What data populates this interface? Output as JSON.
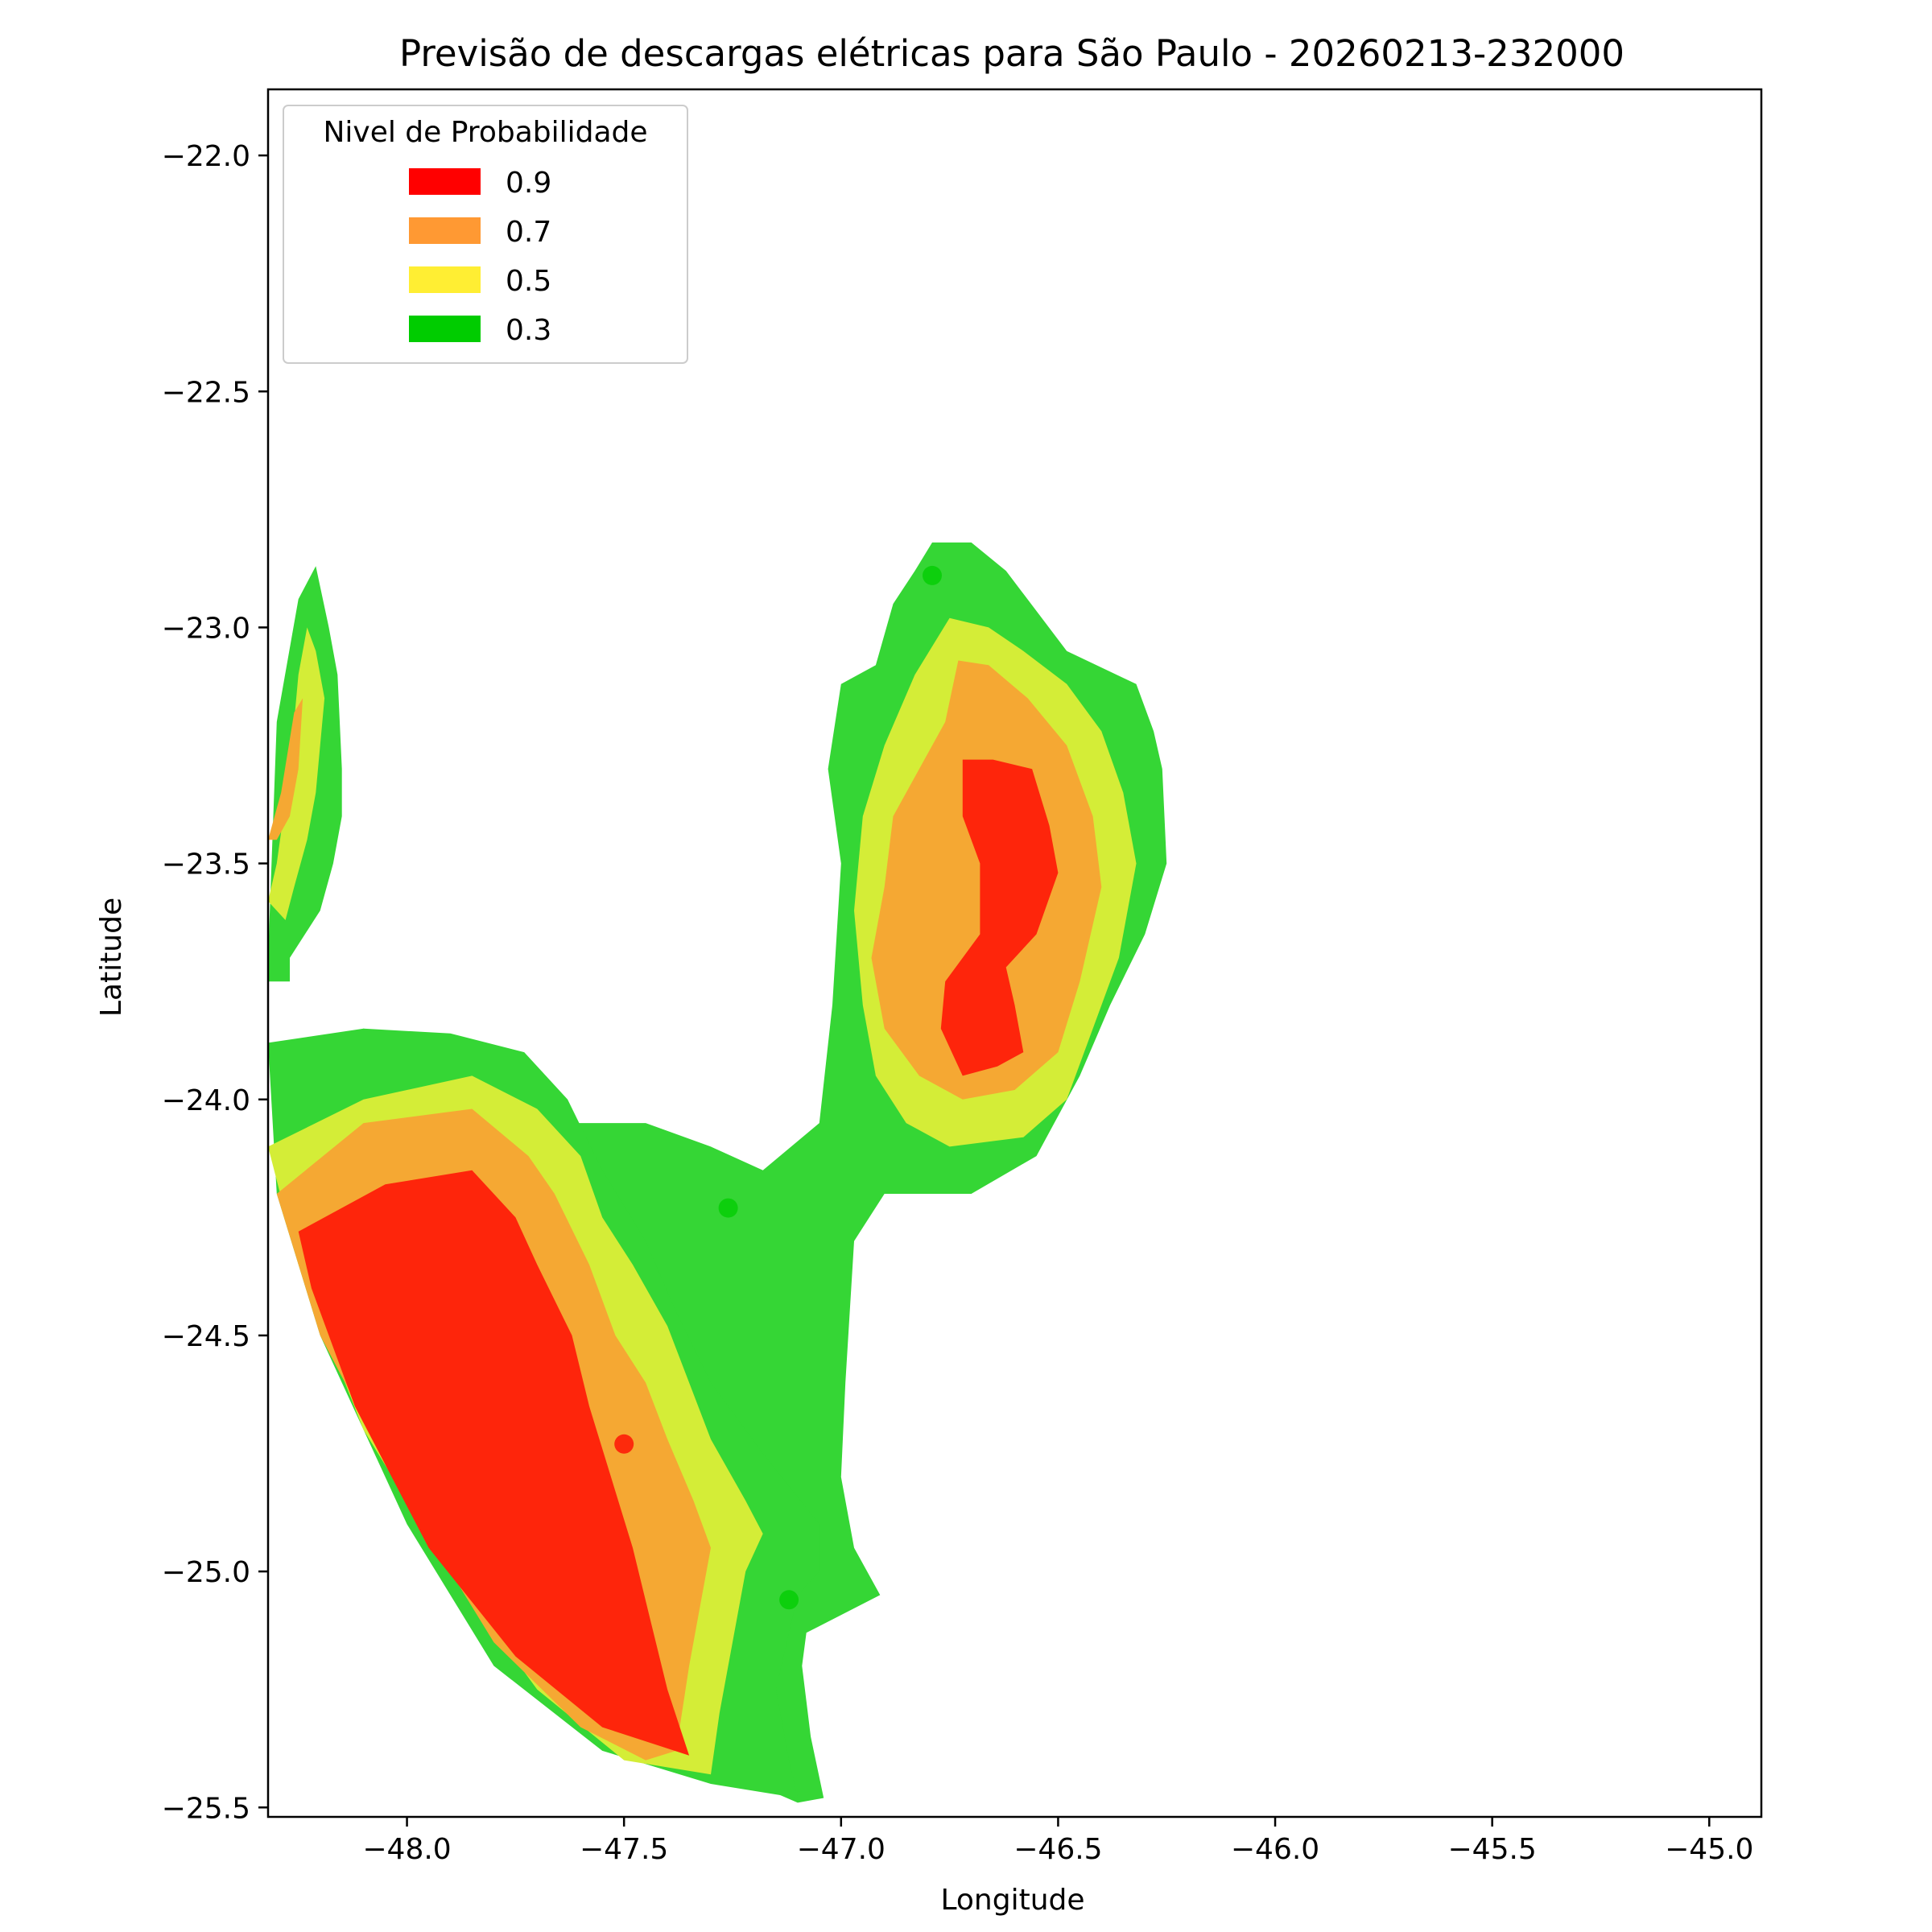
{
  "chart_data": {
    "type": "contour",
    "title": "Previsão de descargas elétricas para São Paulo - 20260213-232000",
    "xlabel": "Longitude",
    "ylabel": "Latitude",
    "xlim": [
      -48.32,
      -44.88
    ],
    "ylim": [
      -25.52,
      -21.86
    ],
    "xticks": [
      -48.0,
      -47.5,
      -47.0,
      -46.5,
      -46.0,
      -45.5,
      -45.0
    ],
    "xtick_labels": [
      "−48.0",
      "−47.5",
      "−47.0",
      "−46.5",
      "−46.0",
      "−45.5",
      "−45.0"
    ],
    "yticks": [
      -22.0,
      -22.5,
      -23.0,
      -23.5,
      -24.0,
      -24.5,
      -25.0,
      -25.5
    ],
    "ytick_labels": [
      "−22.0",
      "−22.5",
      "−23.0",
      "−23.5",
      "−24.0",
      "−24.5",
      "−25.0",
      "−25.5"
    ],
    "grid": false,
    "legend": {
      "title": "Nivel de Probabilidade",
      "placement": "top-left",
      "entries": [
        {
          "label": "0.9",
          "color": "#ff0000"
        },
        {
          "label": "0.7",
          "color": "#ff9933"
        },
        {
          "label": "0.5",
          "color": "#ffee33"
        },
        {
          "label": "0.3",
          "color": "#00cc00"
        }
      ]
    },
    "fill_colors": {
      "0.3": "#35d635",
      "0.5": "#d4ed37",
      "0.7": "#f5a833",
      "0.9": "#fe250b"
    },
    "regions": [
      {
        "name": "northwest-edge",
        "layers": [
          {
            "level": "0.3",
            "points": [
              [
                -48.32,
                -23.7
              ],
              [
                -48.3,
                -23.2
              ],
              [
                -48.25,
                -22.94
              ],
              [
                -48.21,
                -22.87
              ],
              [
                -48.18,
                -23.0
              ],
              [
                -48.16,
                -23.1
              ],
              [
                -48.15,
                -23.3
              ],
              [
                -48.15,
                -23.4
              ],
              [
                -48.17,
                -23.5
              ],
              [
                -48.2,
                -23.6
              ],
              [
                -48.27,
                -23.7
              ],
              [
                -48.27,
                -23.75
              ],
              [
                -48.32,
                -23.75
              ]
            ]
          },
          {
            "level": "0.5",
            "points": [
              [
                -48.32,
                -23.58
              ],
              [
                -48.3,
                -23.5
              ],
              [
                -48.27,
                -23.3
              ],
              [
                -48.25,
                -23.1
              ],
              [
                -48.23,
                -23.0
              ],
              [
                -48.21,
                -23.05
              ],
              [
                -48.19,
                -23.15
              ],
              [
                -48.2,
                -23.25
              ],
              [
                -48.21,
                -23.35
              ],
              [
                -48.23,
                -23.45
              ],
              [
                -48.26,
                -23.55
              ],
              [
                -48.28,
                -23.62
              ]
            ]
          },
          {
            "level": "0.7",
            "points": [
              [
                -48.32,
                -23.45
              ],
              [
                -48.29,
                -23.35
              ],
              [
                -48.26,
                -23.18
              ],
              [
                -48.24,
                -23.15
              ],
              [
                -48.25,
                -23.3
              ],
              [
                -48.27,
                -23.4
              ],
              [
                -48.3,
                -23.45
              ]
            ]
          }
        ]
      },
      {
        "name": "northeast-cell",
        "layers": [
          {
            "level": "0.3",
            "points": [
              [
                -46.79,
                -22.82
              ],
              [
                -46.7,
                -22.82
              ],
              [
                -46.62,
                -22.88
              ],
              [
                -46.48,
                -23.05
              ],
              [
                -46.32,
                -23.12
              ],
              [
                -46.28,
                -23.22
              ],
              [
                -46.26,
                -23.3
              ],
              [
                -46.25,
                -23.5
              ],
              [
                -46.3,
                -23.65
              ],
              [
                -46.38,
                -23.8
              ],
              [
                -46.45,
                -23.95
              ],
              [
                -46.55,
                -24.12
              ],
              [
                -46.7,
                -24.2
              ],
              [
                -46.9,
                -24.2
              ],
              [
                -46.97,
                -24.3
              ],
              [
                -46.99,
                -24.6
              ],
              [
                -47.0,
                -24.8
              ],
              [
                -46.97,
                -24.95
              ],
              [
                -46.91,
                -25.05
              ],
              [
                -47.08,
                -25.13
              ],
              [
                -47.09,
                -25.2
              ],
              [
                -47.07,
                -25.35
              ],
              [
                -47.04,
                -25.48
              ],
              [
                -47.1,
                -25.49
              ],
              [
                -47.2,
                -25.45
              ],
              [
                -47.3,
                -24.9
              ],
              [
                -47.45,
                -24.6
              ],
              [
                -47.55,
                -24.25
              ],
              [
                -47.65,
                -24.0
              ],
              [
                -47.85,
                -23.9
              ],
              [
                -48.1,
                -23.85
              ],
              [
                -48.29,
                -23.9
              ],
              [
                -48.3,
                -24.1
              ],
              [
                -48.05,
                -24.0
              ],
              [
                -47.7,
                -24.05
              ],
              [
                -47.45,
                -24.05
              ],
              [
                -47.3,
                -24.1
              ],
              [
                -47.18,
                -24.15
              ],
              [
                -47.05,
                -24.05
              ],
              [
                -47.02,
                -23.8
              ],
              [
                -47.0,
                -23.5
              ],
              [
                -47.03,
                -23.3
              ],
              [
                -47.0,
                -23.12
              ],
              [
                -46.92,
                -23.08
              ],
              [
                -46.88,
                -22.95
              ],
              [
                -46.83,
                -22.88
              ]
            ]
          },
          {
            "level": "0.5",
            "points": [
              [
                -46.75,
                -22.98
              ],
              [
                -46.66,
                -23.0
              ],
              [
                -46.58,
                -23.05
              ],
              [
                -46.48,
                -23.12
              ],
              [
                -46.4,
                -23.22
              ],
              [
                -46.35,
                -23.35
              ],
              [
                -46.32,
                -23.5
              ],
              [
                -46.36,
                -23.7
              ],
              [
                -46.42,
                -23.85
              ],
              [
                -46.48,
                -24.0
              ],
              [
                -46.58,
                -24.08
              ],
              [
                -46.75,
                -24.1
              ],
              [
                -46.85,
                -24.05
              ],
              [
                -46.92,
                -23.95
              ],
              [
                -46.95,
                -23.8
              ],
              [
                -46.97,
                -23.6
              ],
              [
                -46.95,
                -23.4
              ],
              [
                -46.9,
                -23.25
              ],
              [
                -46.83,
                -23.1
              ]
            ]
          },
          {
            "level": "0.7",
            "points": [
              [
                -46.73,
                -23.07
              ],
              [
                -46.66,
                -23.08
              ],
              [
                -46.57,
                -23.15
              ],
              [
                -46.48,
                -23.25
              ],
              [
                -46.42,
                -23.4
              ],
              [
                -46.4,
                -23.55
              ],
              [
                -46.45,
                -23.75
              ],
              [
                -46.5,
                -23.9
              ],
              [
                -46.6,
                -23.98
              ],
              [
                -46.72,
                -24.0
              ],
              [
                -46.82,
                -23.95
              ],
              [
                -46.9,
                -23.85
              ],
              [
                -46.93,
                -23.7
              ],
              [
                -46.9,
                -23.55
              ],
              [
                -46.88,
                -23.4
              ],
              [
                -46.82,
                -23.3
              ],
              [
                -46.76,
                -23.2
              ]
            ]
          },
          {
            "level": "0.9",
            "points": [
              [
                -46.72,
                -23.28
              ],
              [
                -46.65,
                -23.28
              ],
              [
                -46.56,
                -23.3
              ],
              [
                -46.52,
                -23.42
              ],
              [
                -46.5,
                -23.52
              ],
              [
                -46.55,
                -23.65
              ],
              [
                -46.62,
                -23.72
              ],
              [
                -46.6,
                -23.8
              ],
              [
                -46.58,
                -23.9
              ],
              [
                -46.64,
                -23.93
              ],
              [
                -46.72,
                -23.95
              ],
              [
                -46.77,
                -23.85
              ],
              [
                -46.76,
                -23.75
              ],
              [
                -46.68,
                -23.65
              ],
              [
                -46.68,
                -23.5
              ],
              [
                -46.72,
                -23.4
              ]
            ]
          }
        ]
      },
      {
        "name": "southwest-cell",
        "layers": [
          {
            "level": "0.3",
            "points": [
              [
                -48.32,
                -23.88
              ],
              [
                -48.1,
                -23.85
              ],
              [
                -47.9,
                -23.86
              ],
              [
                -47.73,
                -23.9
              ],
              [
                -47.63,
                -24.0
              ],
              [
                -47.55,
                -24.15
              ],
              [
                -47.45,
                -24.3
              ],
              [
                -47.38,
                -24.45
              ],
              [
                -47.3,
                -24.6
              ],
              [
                -47.18,
                -24.75
              ],
              [
                -47.05,
                -24.9
              ],
              [
                -47.05,
                -25.0
              ],
              [
                -47.1,
                -25.05
              ],
              [
                -47.15,
                -25.25
              ],
              [
                -47.12,
                -25.4
              ],
              [
                -47.1,
                -25.48
              ],
              [
                -47.3,
                -25.45
              ],
              [
                -47.55,
                -25.38
              ],
              [
                -47.8,
                -25.2
              ],
              [
                -48.0,
                -24.9
              ],
              [
                -48.2,
                -24.5
              ],
              [
                -48.3,
                -24.2
              ]
            ]
          },
          {
            "level": "0.5",
            "points": [
              [
                -48.32,
                -24.1
              ],
              [
                -48.1,
                -24.0
              ],
              [
                -47.85,
                -23.95
              ],
              [
                -47.7,
                -24.02
              ],
              [
                -47.6,
                -24.12
              ],
              [
                -47.55,
                -24.25
              ],
              [
                -47.48,
                -24.35
              ],
              [
                -47.4,
                -24.48
              ],
              [
                -47.35,
                -24.6
              ],
              [
                -47.3,
                -24.72
              ],
              [
                -47.22,
                -24.85
              ],
              [
                -47.18,
                -24.92
              ],
              [
                -47.22,
                -25.0
              ],
              [
                -47.25,
                -25.15
              ],
              [
                -47.28,
                -25.3
              ],
              [
                -47.3,
                -25.43
              ],
              [
                -47.5,
                -25.4
              ],
              [
                -47.7,
                -25.25
              ],
              [
                -47.9,
                -25.0
              ],
              [
                -48.1,
                -24.7
              ],
              [
                -48.25,
                -24.35
              ]
            ]
          },
          {
            "level": "0.7",
            "points": [
              [
                -48.3,
                -24.2
              ],
              [
                -48.1,
                -24.05
              ],
              [
                -47.85,
                -24.02
              ],
              [
                -47.72,
                -24.12
              ],
              [
                -47.66,
                -24.2
              ],
              [
                -47.58,
                -24.35
              ],
              [
                -47.52,
                -24.5
              ],
              [
                -47.45,
                -24.6
              ],
              [
                -47.4,
                -24.72
              ],
              [
                -47.34,
                -24.85
              ],
              [
                -47.3,
                -24.95
              ],
              [
                -47.32,
                -25.05
              ],
              [
                -47.35,
                -25.2
              ],
              [
                -47.38,
                -25.38
              ],
              [
                -47.45,
                -25.4
              ],
              [
                -47.6,
                -25.33
              ],
              [
                -47.8,
                -25.15
              ],
              [
                -48.0,
                -24.85
              ],
              [
                -48.2,
                -24.5
              ]
            ]
          },
          {
            "level": "0.9",
            "points": [
              [
                -48.25,
                -24.28
              ],
              [
                -48.05,
                -24.18
              ],
              [
                -47.85,
                -24.15
              ],
              [
                -47.75,
                -24.25
              ],
              [
                -47.7,
                -24.35
              ],
              [
                -47.62,
                -24.5
              ],
              [
                -47.58,
                -24.65
              ],
              [
                -47.53,
                -24.8
              ],
              [
                -47.48,
                -24.95
              ],
              [
                -47.44,
                -25.1
              ],
              [
                -47.4,
                -25.25
              ],
              [
                -47.35,
                -25.39
              ],
              [
                -47.55,
                -25.33
              ],
              [
                -47.75,
                -25.18
              ],
              [
                -47.95,
                -24.95
              ],
              [
                -48.12,
                -24.65
              ],
              [
                -48.22,
                -24.4
              ]
            ]
          }
        ]
      }
    ],
    "markers": [
      {
        "lon": -47.26,
        "lat": -24.23,
        "level": "0.3"
      },
      {
        "lon": -47.5,
        "lat": -24.73,
        "level": "0.9"
      },
      {
        "lon": -47.12,
        "lat": -25.06,
        "level": "0.3"
      },
      {
        "lon": -46.79,
        "lat": -22.89,
        "level": "0.3"
      }
    ],
    "marker_colors": {
      "0.3": "#00cc00",
      "0.9": "#ff0000"
    }
  }
}
